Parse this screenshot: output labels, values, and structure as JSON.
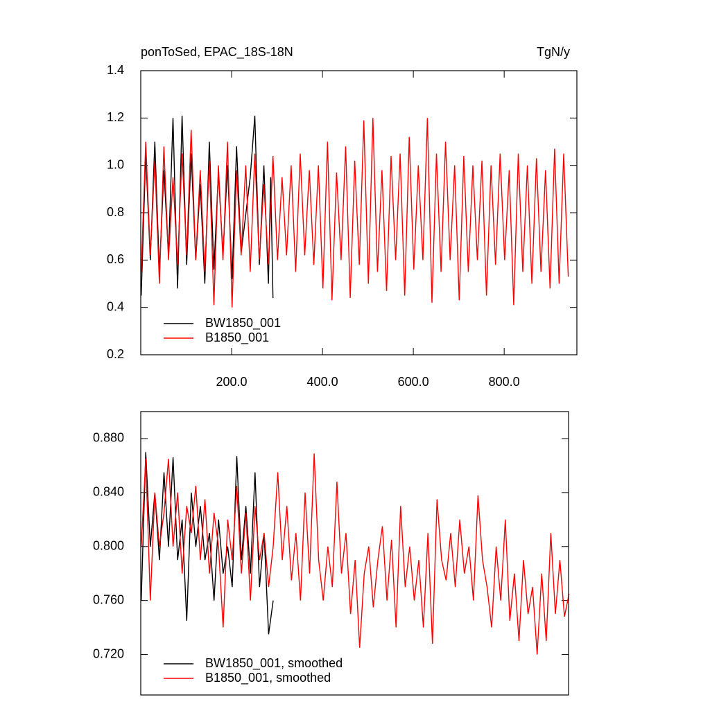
{
  "chart_data": [
    {
      "type": "line",
      "title": "ponToSed, EPAC_18S-18N",
      "subtitle": "TgN/y",
      "xlim": [
        0,
        960
      ],
      "xticks": [
        {
          "value": 200,
          "label": "200.0"
        },
        {
          "value": 400,
          "label": "400.0"
        },
        {
          "value": 600,
          "label": "600.0"
        },
        {
          "value": 800,
          "label": "800.0"
        }
      ],
      "ylim": [
        0.2,
        1.4
      ],
      "yticks": [
        0.2,
        0.4,
        0.6,
        0.8,
        {
          "value": 1,
          "label": "1.0"
        },
        1.2,
        1.4
      ],
      "legend": "bottom left",
      "series": [
        {
          "name": "BW1850_001",
          "color": "#000000",
          "x": [
            1,
            11,
            21,
            31,
            41,
            51,
            61,
            71,
            81,
            91,
            101,
            111,
            121,
            131,
            141,
            151,
            161,
            171,
            181,
            191,
            201,
            211,
            221,
            241,
            251,
            261,
            271,
            281,
            286,
            291
          ],
          "values": [
            0.45,
            1.05,
            0.6,
            1.1,
            0.55,
            0.98,
            0.62,
            1.2,
            0.48,
            1.21,
            0.58,
            1.05,
            0.6,
            0.92,
            0.5,
            1.1,
            0.56,
            0.97,
            0.62,
            1.0,
            0.52,
            1.08,
            0.63,
            0.95,
            1.21,
            0.58,
            1.0,
            0.5,
            0.95,
            0.44
          ]
        },
        {
          "name": "B1850_001",
          "color": "#ff0000",
          "x": [
            1,
            11,
            21,
            31,
            41,
            51,
            61,
            71,
            81,
            91,
            101,
            111,
            121,
            131,
            141,
            151,
            161,
            171,
            181,
            191,
            201,
            211,
            221,
            231,
            241,
            251,
            261,
            271,
            281,
            291,
            301,
            311,
            321,
            331,
            341,
            351,
            361,
            371,
            381,
            391,
            401,
            411,
            421,
            431,
            441,
            451,
            461,
            471,
            481,
            491,
            501,
            511,
            521,
            531,
            541,
            551,
            561,
            571,
            581,
            591,
            601,
            611,
            621,
            631,
            641,
            651,
            661,
            671,
            681,
            691,
            701,
            711,
            721,
            731,
            741,
            751,
            761,
            771,
            781,
            791,
            801,
            811,
            821,
            831,
            841,
            851,
            861,
            871,
            881,
            891,
            901,
            911,
            921,
            931,
            941
          ],
          "values": [
            0.55,
            1.1,
            0.62,
            1.02,
            0.5,
            1.08,
            0.6,
            0.95,
            0.58,
            1.05,
            0.62,
            1.15,
            0.6,
            0.98,
            0.55,
            1.02,
            0.41,
            1.0,
            0.6,
            1.1,
            0.4,
            0.98,
            0.62,
            1.0,
            0.55,
            1.05,
            0.6,
            0.92,
            0.58,
            1.04,
            0.6,
            0.95,
            0.62,
            1.0,
            0.55,
            1.05,
            0.62,
            0.98,
            0.58,
            1.0,
            0.48,
            1.1,
            0.43,
            0.97,
            0.6,
            1.08,
            0.44,
            1.02,
            0.58,
            1.19,
            0.5,
            1.2,
            0.55,
            0.98,
            0.47,
            1.04,
            0.6,
            1.05,
            0.45,
            1.12,
            0.56,
            1.0,
            0.6,
            1.2,
            0.42,
            1.05,
            0.55,
            1.1,
            0.6,
            1.0,
            0.43,
            1.04,
            0.55,
            1.0,
            0.6,
            1.02,
            0.45,
            1.0,
            0.58,
            1.05,
            0.6,
            0.98,
            0.41,
            1.05,
            0.55,
            1.0,
            0.5,
            1.03,
            0.55,
            0.98,
            0.48,
            1.07,
            0.5,
            1.05,
            0.53
          ]
        }
      ]
    },
    {
      "type": "line",
      "xlim": [
        0,
        940
      ],
      "ylim": [
        0.69,
        0.9
      ],
      "yticks": [
        {
          "value": 0.72,
          "label": "0.720"
        },
        {
          "value": 0.76,
          "label": "0.760"
        },
        {
          "value": 0.8,
          "label": "0.800"
        },
        {
          "value": 0.84,
          "label": "0.840"
        },
        {
          "value": 0.88,
          "label": "0.880"
        }
      ],
      "legend": "bottom left",
      "series": [
        {
          "name": "BW1850_001, smoothed",
          "color": "#000000",
          "x": [
            1,
            11,
            21,
            31,
            41,
            51,
            61,
            71,
            81,
            91,
            101,
            111,
            121,
            131,
            141,
            151,
            161,
            171,
            181,
            191,
            201,
            211,
            221,
            231,
            241,
            251,
            261,
            271,
            281,
            291
          ],
          "values": [
            0.76,
            0.87,
            0.8,
            0.84,
            0.79,
            0.855,
            0.8,
            0.866,
            0.79,
            0.82,
            0.745,
            0.84,
            0.8,
            0.83,
            0.79,
            0.81,
            0.76,
            0.82,
            0.78,
            0.8,
            0.77,
            0.867,
            0.79,
            0.83,
            0.78,
            0.855,
            0.77,
            0.81,
            0.735,
            0.76
          ]
        },
        {
          "name": "B1850_001, smoothed",
          "color": "#ff0000",
          "x": [
            1,
            11,
            21,
            31,
            41,
            51,
            61,
            71,
            81,
            91,
            101,
            111,
            121,
            131,
            141,
            151,
            161,
            171,
            181,
            191,
            201,
            211,
            221,
            231,
            241,
            251,
            261,
            271,
            281,
            291,
            301,
            311,
            321,
            331,
            341,
            351,
            361,
            371,
            381,
            391,
            401,
            411,
            421,
            431,
            441,
            451,
            461,
            471,
            481,
            491,
            501,
            511,
            521,
            531,
            541,
            551,
            561,
            571,
            581,
            591,
            601,
            611,
            621,
            631,
            641,
            651,
            661,
            671,
            681,
            691,
            701,
            711,
            721,
            731,
            741,
            751,
            761,
            771,
            781,
            791,
            801,
            811,
            821,
            831,
            841,
            851,
            861,
            871,
            881,
            891,
            901,
            911,
            921,
            931,
            941
          ],
          "values": [
            0.8,
            0.865,
            0.76,
            0.84,
            0.8,
            0.825,
            0.865,
            0.8,
            0.84,
            0.78,
            0.83,
            0.81,
            0.845,
            0.79,
            0.835,
            0.78,
            0.825,
            0.8,
            0.74,
            0.82,
            0.79,
            0.845,
            0.78,
            0.825,
            0.76,
            0.83,
            0.79,
            0.81,
            0.77,
            0.8,
            0.855,
            0.79,
            0.83,
            0.775,
            0.81,
            0.76,
            0.84,
            0.78,
            0.869,
            0.79,
            0.76,
            0.8,
            0.77,
            0.848,
            0.78,
            0.81,
            0.75,
            0.79,
            0.725,
            0.78,
            0.8,
            0.755,
            0.79,
            0.815,
            0.76,
            0.805,
            0.74,
            0.83,
            0.77,
            0.8,
            0.76,
            0.79,
            0.74,
            0.81,
            0.728,
            0.835,
            0.79,
            0.775,
            0.81,
            0.77,
            0.82,
            0.78,
            0.8,
            0.76,
            0.838,
            0.79,
            0.77,
            0.74,
            0.8,
            0.76,
            0.82,
            0.745,
            0.78,
            0.73,
            0.79,
            0.75,
            0.77,
            0.72,
            0.78,
            0.73,
            0.81,
            0.75,
            0.79,
            0.748,
            0.765
          ]
        }
      ]
    }
  ]
}
